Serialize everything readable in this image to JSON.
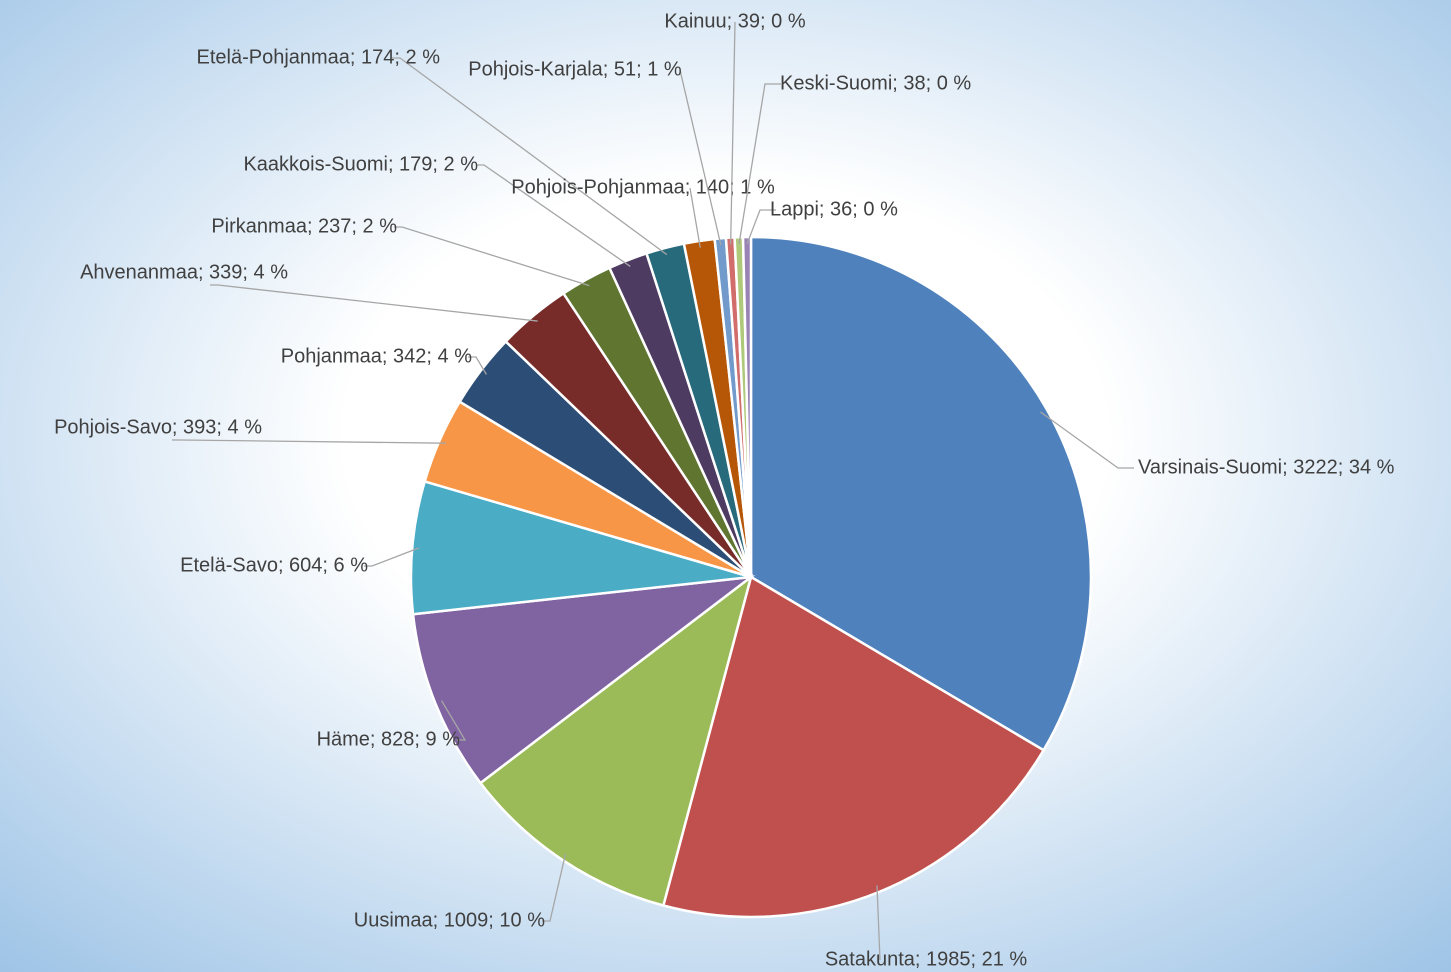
{
  "chart_data": {
    "type": "pie",
    "values": [
      3222,
      1985,
      1009,
      828,
      604,
      393,
      342,
      339,
      237,
      179,
      174,
      140,
      51,
      39,
      38,
      36
    ],
    "value_labels": [
      "Varsinais-Suomi; 3222; 34 %",
      "Satakunta; 1985; 21 %",
      "Uusimaa; 1009; 10 %",
      "Häme; 828; 9 %",
      "Etelä-Savo; 604; 6 %",
      "Pohjois-Savo; 393; 4 %",
      "Pohjanmaa; 342; 4 %",
      "Ahvenanmaa; 339; 4 %",
      "Pirkanmaa; 237; 2 %",
      "Kaakkois-Suomi; 179; 2 %",
      "Etelä-Pohjanmaa; 174; 2 %",
      "Pohjois-Pohjanmaa; 140; 1 %",
      "Pohjois-Karjala; 51; 1 %",
      "Kainuu; 39; 0 %",
      "Keski-Suomi; 38; 0 %",
      "Lappi; 36; 0 %"
    ],
    "colors": [
      "#4f81bd",
      "#c0504d",
      "#9bbb59",
      "#8064a2",
      "#4bacc6",
      "#f79646",
      "#2c4d75",
      "#772c2a",
      "#5f7530",
      "#4d3b62",
      "#276a7c",
      "#b65708",
      "#729aca",
      "#d16e6b",
      "#afc97a",
      "#9983b5"
    ]
  }
}
